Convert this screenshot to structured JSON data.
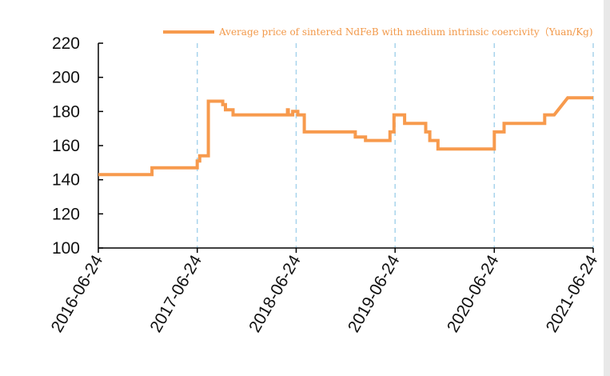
{
  "chart_data": {
    "type": "line",
    "title": "",
    "xlabel": "",
    "ylabel": "",
    "ylim": [
      100,
      220
    ],
    "y_ticks": [
      100,
      120,
      140,
      160,
      180,
      200,
      220
    ],
    "x_range": [
      "2016-06-24",
      "2021-06-24"
    ],
    "x_ticks": [
      "2016-06-24",
      "2017-06-24",
      "2018-06-24",
      "2019-06-24",
      "2020-06-24",
      "2021-06-24"
    ],
    "vertical_gridlines": "dashed at x ticks",
    "legend_position": "top",
    "colors": {
      "series": "#f79a4d",
      "grid": "#a8d4ec",
      "axis": "#000000"
    },
    "series": [
      {
        "name": "Average price of sintered NdFeB with medium intrinsic coercivity（Yuan/Kg)",
        "points": [
          [
            "2016-06-24",
            143
          ],
          [
            "2017-01-08",
            143
          ],
          [
            "2017-01-08",
            147
          ],
          [
            "2017-06-24",
            147
          ],
          [
            "2017-06-24",
            151
          ],
          [
            "2017-07-03",
            151
          ],
          [
            "2017-07-03",
            154
          ],
          [
            "2017-08-04",
            154
          ],
          [
            "2017-08-04",
            186
          ],
          [
            "2017-09-26",
            186
          ],
          [
            "2017-09-26",
            184
          ],
          [
            "2017-10-06",
            184
          ],
          [
            "2017-10-06",
            181
          ],
          [
            "2017-11-03",
            181
          ],
          [
            "2017-11-03",
            178
          ],
          [
            "2018-05-23",
            178
          ],
          [
            "2018-05-23",
            181
          ],
          [
            "2018-05-26",
            181
          ],
          [
            "2018-05-26",
            178
          ],
          [
            "2018-06-11",
            178
          ],
          [
            "2018-06-11",
            180
          ],
          [
            "2018-06-30",
            180
          ],
          [
            "2018-06-30",
            178
          ],
          [
            "2018-07-24",
            178
          ],
          [
            "2018-07-24",
            168
          ],
          [
            "2019-01-28",
            168
          ],
          [
            "2019-01-28",
            165
          ],
          [
            "2019-03-07",
            165
          ],
          [
            "2019-03-07",
            163
          ],
          [
            "2019-06-05",
            163
          ],
          [
            "2019-06-05",
            168
          ],
          [
            "2019-06-20",
            168
          ],
          [
            "2019-06-20",
            178
          ],
          [
            "2019-07-29",
            178
          ],
          [
            "2019-07-29",
            173
          ],
          [
            "2019-10-15",
            173
          ],
          [
            "2019-10-15",
            168
          ],
          [
            "2019-10-30",
            168
          ],
          [
            "2019-10-30",
            163
          ],
          [
            "2019-11-29",
            163
          ],
          [
            "2019-11-29",
            158
          ],
          [
            "2020-06-24",
            158
          ],
          [
            "2020-06-24",
            168
          ],
          [
            "2020-07-30",
            168
          ],
          [
            "2020-07-30",
            173
          ],
          [
            "2020-12-27",
            173
          ],
          [
            "2020-12-27",
            178
          ],
          [
            "2021-01-31",
            178
          ],
          [
            "2021-03-22",
            188
          ],
          [
            "2021-06-24",
            188
          ]
        ]
      }
    ]
  }
}
